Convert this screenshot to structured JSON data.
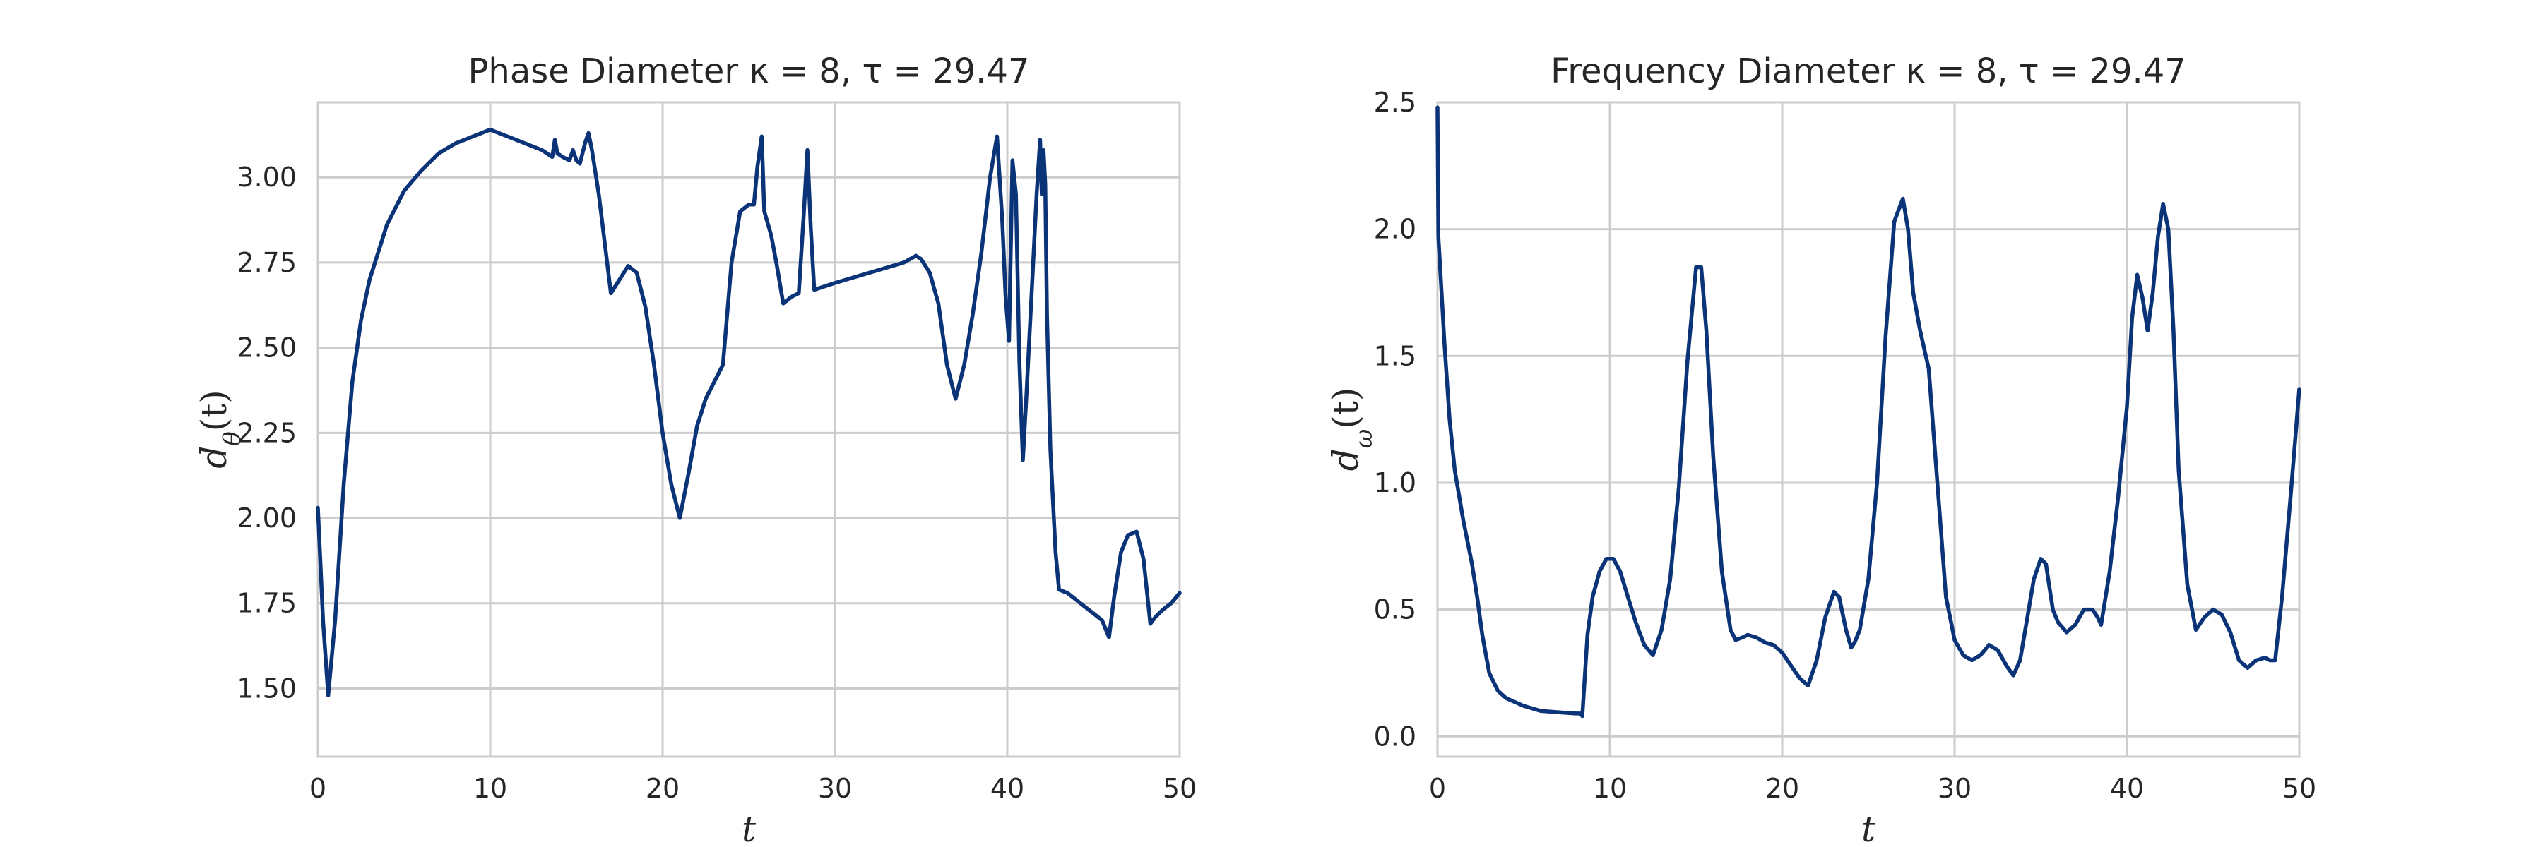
{
  "chart_data": [
    {
      "type": "line",
      "title": "Phase Diameter κ = 8, τ = 29.47",
      "xlabel": "t",
      "ylabel": "dθ(t)",
      "ylabel_main": "d",
      "ylabel_sub": "θ",
      "ylabel_tail": "(t)",
      "xlim": [
        0,
        50
      ],
      "ylim": [
        1.3,
        3.22
      ],
      "x_ticks": [
        0,
        10,
        20,
        30,
        40,
        50
      ],
      "x_tick_labels": [
        "0",
        "10",
        "20",
        "30",
        "40",
        "50"
      ],
      "y_ticks": [
        1.5,
        1.75,
        2.0,
        2.25,
        2.5,
        2.75,
        3.0
      ],
      "y_tick_labels": [
        "1.50",
        "1.75",
        "2.00",
        "2.25",
        "2.50",
        "2.75",
        "3.00"
      ],
      "grid": true,
      "color": "#0b3478",
      "series": [
        {
          "x": [
            0,
            0.3,
            0.6,
            1.0,
            1.5,
            2.0,
            2.5,
            3.0,
            4.0,
            5.0,
            6.0,
            7.0,
            8.0,
            9.0,
            10.0,
            10.5,
            11.5,
            13.0,
            13.6,
            13.75,
            13.9,
            14.2,
            14.6,
            14.8,
            15.0,
            15.2,
            15.5,
            15.7,
            15.9,
            16.3,
            17.0,
            17.5,
            18.0,
            18.5,
            19.0,
            19.5,
            20.0,
            20.5,
            21.0,
            21.5,
            22.0,
            22.5,
            23.0,
            23.5,
            24.0,
            24.5,
            25.0,
            25.3,
            25.5,
            25.75,
            25.9,
            26.3,
            26.6,
            27.0,
            27.5,
            27.9,
            28.2,
            28.4,
            28.6,
            28.8,
            30.0,
            32.0,
            34.0,
            34.7,
            35.0,
            35.5,
            36.0,
            36.5,
            37.0,
            37.5,
            38.0,
            38.5,
            39.0,
            39.4,
            39.7,
            39.9,
            40.1,
            40.3,
            40.5,
            40.7,
            40.9,
            41.1,
            41.4,
            41.7,
            41.9,
            42.0,
            42.1,
            42.2,
            42.3,
            42.5,
            42.8,
            43.0,
            43.5,
            44.0,
            44.5,
            45.0,
            45.5,
            45.9,
            46.2,
            46.6,
            47.0,
            47.5,
            47.9,
            48.3,
            48.6,
            49.0,
            49.5,
            50.0
          ],
          "y": [
            2.03,
            1.7,
            1.48,
            1.7,
            2.1,
            2.4,
            2.58,
            2.7,
            2.86,
            2.96,
            3.02,
            3.07,
            3.1,
            3.12,
            3.14,
            3.13,
            3.11,
            3.08,
            3.06,
            3.11,
            3.07,
            3.06,
            3.05,
            3.08,
            3.05,
            3.04,
            3.1,
            3.13,
            3.08,
            2.95,
            2.66,
            2.7,
            2.74,
            2.72,
            2.62,
            2.45,
            2.25,
            2.1,
            2.0,
            2.13,
            2.27,
            2.35,
            2.4,
            2.45,
            2.75,
            2.9,
            2.92,
            2.92,
            3.03,
            3.12,
            2.9,
            2.83,
            2.75,
            2.63,
            2.65,
            2.66,
            2.9,
            3.08,
            2.85,
            2.67,
            2.69,
            2.72,
            2.75,
            2.77,
            2.76,
            2.72,
            2.63,
            2.45,
            2.35,
            2.45,
            2.6,
            2.78,
            3.0,
            3.12,
            2.88,
            2.65,
            2.52,
            3.05,
            2.95,
            2.46,
            2.17,
            2.35,
            2.65,
            2.95,
            3.11,
            2.95,
            3.08,
            2.98,
            2.6,
            2.2,
            1.9,
            1.79,
            1.78,
            1.76,
            1.74,
            1.72,
            1.7,
            1.65,
            1.77,
            1.9,
            1.95,
            1.96,
            1.88,
            1.69,
            1.71,
            1.73,
            1.75,
            1.78
          ]
        }
      ]
    },
    {
      "type": "line",
      "title": "Frequency Diameter κ = 8, τ = 29.47",
      "xlabel": "t",
      "ylabel": "dω(t)",
      "ylabel_main": "d",
      "ylabel_sub": "ω",
      "ylabel_tail": "(t)",
      "xlim": [
        0,
        50
      ],
      "ylim": [
        -0.08,
        2.5
      ],
      "x_ticks": [
        0,
        10,
        20,
        30,
        40,
        50
      ],
      "x_tick_labels": [
        "0",
        "10",
        "20",
        "30",
        "40",
        "50"
      ],
      "y_ticks": [
        0.0,
        0.5,
        1.0,
        1.5,
        2.0,
        2.5
      ],
      "y_tick_labels": [
        "0.0",
        "0.5",
        "1.0",
        "1.5",
        "2.0",
        "2.5"
      ],
      "grid": true,
      "color": "#0b3478",
      "series": [
        {
          "x": [
            0,
            0.05,
            0.15,
            0.4,
            0.7,
            1.0,
            1.5,
            2.0,
            2.3,
            2.6,
            3.0,
            3.5,
            4.0,
            5.0,
            6.0,
            7.0,
            8.0,
            8.3,
            8.4,
            8.7,
            9.0,
            9.4,
            9.8,
            10.2,
            10.6,
            11.0,
            11.5,
            12.0,
            12.5,
            13.0,
            13.5,
            14.0,
            14.5,
            15.0,
            15.3,
            15.6,
            16.0,
            16.5,
            17.0,
            17.3,
            17.7,
            18.0,
            18.5,
            19.0,
            19.5,
            20.0,
            20.5,
            21.0,
            21.5,
            22.0,
            22.5,
            23.0,
            23.3,
            23.7,
            24.0,
            24.2,
            24.5,
            25.0,
            25.5,
            26.0,
            26.5,
            27.0,
            27.3,
            27.6,
            28.0,
            28.5,
            29.0,
            29.5,
            30.0,
            30.5,
            31.0,
            31.5,
            32.0,
            32.5,
            33.0,
            33.4,
            33.8,
            34.2,
            34.6,
            35.0,
            35.3,
            35.7,
            36.0,
            36.5,
            37.0,
            37.5,
            38.0,
            38.3,
            38.5,
            39.0,
            39.5,
            40.0,
            40.3,
            40.6,
            40.9,
            41.2,
            41.5,
            41.8,
            42.1,
            42.4,
            42.7,
            43.0,
            43.5,
            44.0,
            44.5,
            45.0,
            45.5,
            46.0,
            46.5,
            47.0,
            47.5,
            48.0,
            48.3,
            48.6,
            49.0,
            49.5,
            50.0
          ],
          "y": [
            2.48,
            1.97,
            1.85,
            1.55,
            1.25,
            1.05,
            0.85,
            0.68,
            0.55,
            0.4,
            0.25,
            0.18,
            0.15,
            0.12,
            0.1,
            0.095,
            0.09,
            0.09,
            0.08,
            0.4,
            0.55,
            0.65,
            0.7,
            0.7,
            0.65,
            0.56,
            0.45,
            0.36,
            0.32,
            0.42,
            0.62,
            0.98,
            1.48,
            1.85,
            1.85,
            1.6,
            1.1,
            0.65,
            0.42,
            0.38,
            0.39,
            0.4,
            0.39,
            0.37,
            0.36,
            0.33,
            0.28,
            0.23,
            0.2,
            0.3,
            0.47,
            0.57,
            0.55,
            0.42,
            0.35,
            0.37,
            0.42,
            0.62,
            1.0,
            1.58,
            2.03,
            2.12,
            2.0,
            1.75,
            1.6,
            1.45,
            1.0,
            0.55,
            0.38,
            0.32,
            0.3,
            0.32,
            0.36,
            0.34,
            0.28,
            0.24,
            0.3,
            0.46,
            0.62,
            0.7,
            0.68,
            0.5,
            0.45,
            0.41,
            0.44,
            0.5,
            0.5,
            0.47,
            0.44,
            0.65,
            0.95,
            1.3,
            1.65,
            1.82,
            1.73,
            1.6,
            1.75,
            1.97,
            2.1,
            2.0,
            1.6,
            1.05,
            0.6,
            0.42,
            0.47,
            0.5,
            0.48,
            0.41,
            0.3,
            0.27,
            0.3,
            0.31,
            0.3,
            0.3,
            0.55,
            0.95,
            1.37
          ]
        }
      ]
    }
  ]
}
